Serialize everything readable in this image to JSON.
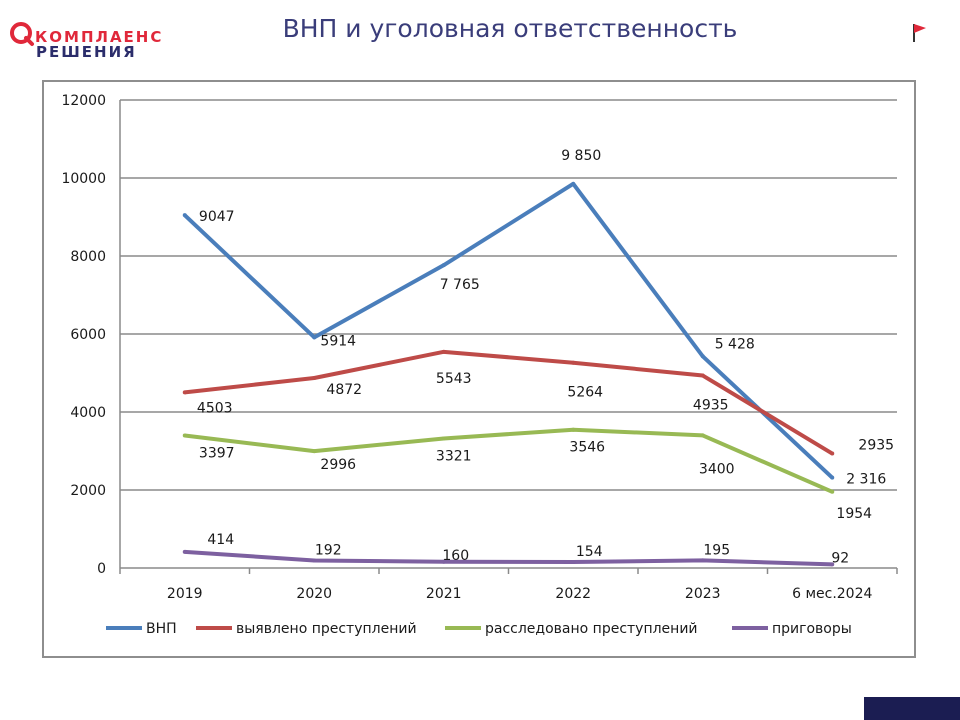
{
  "header": {
    "logo_line1": "КОМПЛАЕНС",
    "logo_line2": "РЕШЕНИЯ",
    "title": "ВНП и уголовная ответственность"
  },
  "icons": {
    "logo": "logo-mark-icon",
    "flag": "red-flag-icon"
  },
  "colors": {
    "brand_red": "#e0283a",
    "brand_navy": "#2b2d6b",
    "title": "#3a3d7a"
  },
  "chart_data": {
    "type": "line",
    "categories": [
      "2019",
      "2020",
      "2021",
      "2022",
      "2023",
      "6 мес.2024"
    ],
    "ylim": [
      0,
      12000
    ],
    "yticks": [
      "0",
      "2000",
      "4000",
      "6000",
      "8000",
      "10000",
      "12000"
    ],
    "grid": true,
    "legend": "bottom",
    "series": [
      {
        "name": "ВНП",
        "color": "#4a7ebb",
        "values": [
          9047,
          5914,
          7765,
          9850,
          5428,
          2316
        ],
        "labels": [
          "9047",
          "5914",
          "7 765",
          "9 850",
          "5 428",
          "2 316"
        ]
      },
      {
        "name": "выявлено преступлений",
        "color": "#be4b48",
        "values": [
          4503,
          4872,
          5543,
          5264,
          4935,
          2935
        ],
        "labels": [
          "4503",
          "4872",
          "5543",
          "5264",
          "4935",
          "2935"
        ]
      },
      {
        "name": "расследовано преступлений",
        "color": "#98b954",
        "values": [
          3397,
          2996,
          3321,
          3546,
          3400,
          1954
        ],
        "labels": [
          "3397",
          "2996",
          "3321",
          "3546",
          "3400",
          "1954"
        ]
      },
      {
        "name": "приговоры",
        "color": "#7d60a0",
        "values": [
          414,
          192,
          160,
          154,
          195,
          92
        ],
        "labels": [
          "414",
          "192",
          "160",
          "154",
          "195",
          "92"
        ]
      }
    ]
  }
}
